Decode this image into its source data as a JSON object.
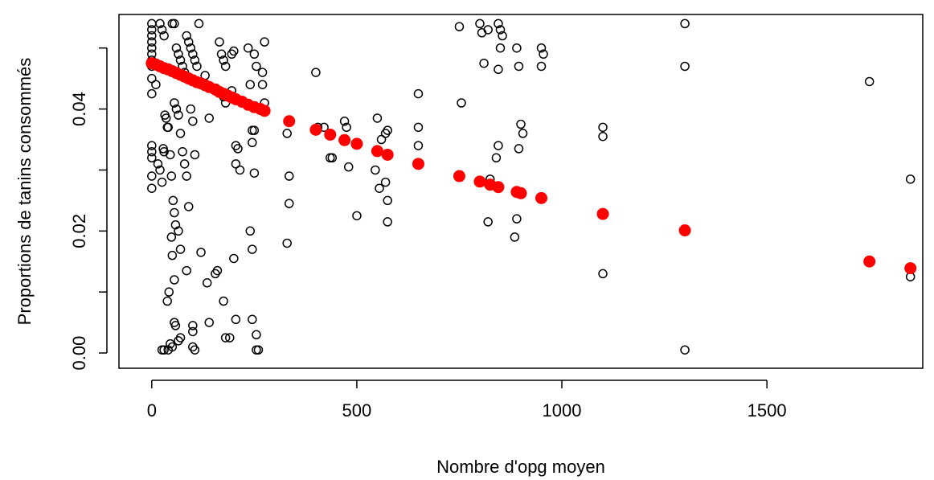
{
  "chart_data": {
    "type": "scatter",
    "title": "",
    "xlabel": "Nombre d'opg moyen",
    "ylabel": "Proportions de tanins consommés",
    "xlim": [
      -80,
      1880
    ],
    "ylim": [
      -0.0025,
      0.0555
    ],
    "x_ticks": [
      0,
      500,
      1000,
      1500
    ],
    "x_tick_labels": [
      "0",
      "500",
      "1000",
      "1500"
    ],
    "y_ticks": [
      0.0,
      0.01,
      0.02,
      0.03,
      0.04,
      0.05
    ],
    "y_tick_labels": [
      "0.00",
      "",
      "0.02",
      "",
      "0.04",
      ""
    ],
    "grid": false,
    "series": [
      {
        "marker": "open-circle",
        "color": "#000000",
        "points": [
          [
            0,
            0.054
          ],
          [
            0,
            0.053
          ],
          [
            0,
            0.052
          ],
          [
            0,
            0.051
          ],
          [
            0,
            0.05
          ],
          [
            0,
            0.049
          ],
          [
            0,
            0.048
          ],
          [
            0,
            0.047
          ],
          [
            0,
            0.045
          ],
          [
            0,
            0.0425
          ],
          [
            0,
            0.034
          ],
          [
            0,
            0.033
          ],
          [
            0,
            0.032
          ],
          [
            0,
            0.029
          ],
          [
            0,
            0.027
          ],
          [
            10,
            0.044
          ],
          [
            15,
            0.031
          ],
          [
            20,
            0.03
          ],
          [
            25,
            0.028
          ],
          [
            28,
            0.0335
          ],
          [
            30,
            0.033
          ],
          [
            32,
            0.039
          ],
          [
            35,
            0.0385
          ],
          [
            20,
            0.054
          ],
          [
            25,
            0.053
          ],
          [
            30,
            0.052
          ],
          [
            25,
            0.0005
          ],
          [
            30,
            0.0005
          ],
          [
            40,
            0.0005
          ],
          [
            45,
            0.0015
          ],
          [
            50,
            0.001
          ],
          [
            55,
            0.005
          ],
          [
            58,
            0.0045
          ],
          [
            65,
            0.002
          ],
          [
            70,
            0.0025
          ],
          [
            38,
            0.037
          ],
          [
            40,
            0.037
          ],
          [
            45,
            0.0325
          ],
          [
            48,
            0.029
          ],
          [
            52,
            0.025
          ],
          [
            55,
            0.023
          ],
          [
            58,
            0.021
          ],
          [
            65,
            0.02
          ],
          [
            70,
            0.017
          ],
          [
            48,
            0.019
          ],
          [
            50,
            0.016
          ],
          [
            55,
            0.012
          ],
          [
            42,
            0.01
          ],
          [
            38,
            0.0085
          ],
          [
            50,
            0.054
          ],
          [
            55,
            0.054
          ],
          [
            60,
            0.05
          ],
          [
            65,
            0.049
          ],
          [
            70,
            0.048
          ],
          [
            75,
            0.047
          ],
          [
            80,
            0.046
          ],
          [
            85,
            0.052
          ],
          [
            90,
            0.051
          ],
          [
            95,
            0.05
          ],
          [
            100,
            0.049
          ],
          [
            105,
            0.048
          ],
          [
            110,
            0.047
          ],
          [
            115,
            0.054
          ],
          [
            55,
            0.041
          ],
          [
            60,
            0.04
          ],
          [
            65,
            0.039
          ],
          [
            70,
            0.036
          ],
          [
            75,
            0.033
          ],
          [
            80,
            0.031
          ],
          [
            85,
            0.029
          ],
          [
            90,
            0.024
          ],
          [
            85,
            0.0135
          ],
          [
            95,
            0.04
          ],
          [
            100,
            0.038
          ],
          [
            105,
            0.0325
          ],
          [
            100,
            0.0035
          ],
          [
            100,
            0.001
          ],
          [
            100,
            0.0045
          ],
          [
            105,
            0.0005
          ],
          [
            120,
            0.0165
          ],
          [
            130,
            0.0455
          ],
          [
            135,
            0.0115
          ],
          [
            140,
            0.0385
          ],
          [
            140,
            0.005
          ],
          [
            155,
            0.013
          ],
          [
            160,
            0.0135
          ],
          [
            165,
            0.051
          ],
          [
            170,
            0.049
          ],
          [
            175,
            0.048
          ],
          [
            180,
            0.047
          ],
          [
            175,
            0.042
          ],
          [
            180,
            0.041
          ],
          [
            175,
            0.0085
          ],
          [
            180,
            0.0025
          ],
          [
            195,
            0.049
          ],
          [
            200,
            0.0495
          ],
          [
            195,
            0.043
          ],
          [
            200,
            0.0155
          ],
          [
            205,
            0.0055
          ],
          [
            190,
            0.0025
          ],
          [
            205,
            0.034
          ],
          [
            210,
            0.0335
          ],
          [
            205,
            0.031
          ],
          [
            215,
            0.03
          ],
          [
            235,
            0.05
          ],
          [
            240,
            0.044
          ],
          [
            245,
            0.0365
          ],
          [
            250,
            0.0365
          ],
          [
            245,
            0.0345
          ],
          [
            240,
            0.02
          ],
          [
            245,
            0.017
          ],
          [
            250,
            0.0295
          ],
          [
            245,
            0.0055
          ],
          [
            255,
            0.003
          ],
          [
            255,
            0.0005
          ],
          [
            260,
            0.0005
          ],
          [
            250,
            0.049
          ],
          [
            255,
            0.047
          ],
          [
            270,
            0.046
          ],
          [
            275,
            0.051
          ],
          [
            270,
            0.044
          ],
          [
            275,
            0.041
          ],
          [
            330,
            0.036
          ],
          [
            335,
            0.029
          ],
          [
            335,
            0.0245
          ],
          [
            330,
            0.018
          ],
          [
            400,
            0.046
          ],
          [
            405,
            0.037
          ],
          [
            420,
            0.037
          ],
          [
            435,
            0.032
          ],
          [
            440,
            0.032
          ],
          [
            470,
            0.038
          ],
          [
            475,
            0.037
          ],
          [
            480,
            0.0305
          ],
          [
            500,
            0.0225
          ],
          [
            550,
            0.0385
          ],
          [
            560,
            0.035
          ],
          [
            545,
            0.03
          ],
          [
            555,
            0.027
          ],
          [
            570,
            0.036
          ],
          [
            575,
            0.0365
          ],
          [
            570,
            0.028
          ],
          [
            575,
            0.025
          ],
          [
            575,
            0.0215
          ],
          [
            650,
            0.0425
          ],
          [
            650,
            0.037
          ],
          [
            650,
            0.034
          ],
          [
            750,
            0.0535
          ],
          [
            755,
            0.041
          ],
          [
            800,
            0.054
          ],
          [
            805,
            0.0525
          ],
          [
            810,
            0.0475
          ],
          [
            820,
            0.053
          ],
          [
            825,
            0.0285
          ],
          [
            820,
            0.0215
          ],
          [
            845,
            0.054
          ],
          [
            850,
            0.053
          ],
          [
            855,
            0.052
          ],
          [
            850,
            0.05
          ],
          [
            845,
            0.0465
          ],
          [
            845,
            0.034
          ],
          [
            840,
            0.032
          ],
          [
            890,
            0.05
          ],
          [
            895,
            0.047
          ],
          [
            900,
            0.0375
          ],
          [
            905,
            0.036
          ],
          [
            895,
            0.0335
          ],
          [
            890,
            0.022
          ],
          [
            885,
            0.019
          ],
          [
            950,
            0.05
          ],
          [
            955,
            0.049
          ],
          [
            950,
            0.047
          ],
          [
            1100,
            0.037
          ],
          [
            1100,
            0.0355
          ],
          [
            1100,
            0.013
          ],
          [
            1300,
            0.054
          ],
          [
            1300,
            0.047
          ],
          [
            1300,
            0.0005
          ],
          [
            1750,
            0.0445
          ],
          [
            1850,
            0.0285
          ],
          [
            1850,
            0.0125
          ]
        ]
      },
      {
        "marker": "filled-circle",
        "color": "#ff0000",
        "points": [
          [
            0,
            0.0475
          ],
          [
            10,
            0.0473
          ],
          [
            20,
            0.047
          ],
          [
            30,
            0.0467
          ],
          [
            40,
            0.0465
          ],
          [
            50,
            0.0462
          ],
          [
            60,
            0.0459
          ],
          [
            70,
            0.0456
          ],
          [
            80,
            0.0453
          ],
          [
            90,
            0.045
          ],
          [
            100,
            0.0447
          ],
          [
            110,
            0.0444
          ],
          [
            120,
            0.0442
          ],
          [
            130,
            0.0439
          ],
          [
            140,
            0.0436
          ],
          [
            155,
            0.0432
          ],
          [
            165,
            0.0428
          ],
          [
            175,
            0.0425
          ],
          [
            185,
            0.0422
          ],
          [
            195,
            0.0419
          ],
          [
            205,
            0.0416
          ],
          [
            220,
            0.0412
          ],
          [
            235,
            0.0407
          ],
          [
            250,
            0.0403
          ],
          [
            265,
            0.04
          ],
          [
            275,
            0.0397
          ],
          [
            335,
            0.038
          ],
          [
            400,
            0.0366
          ],
          [
            435,
            0.0358
          ],
          [
            470,
            0.0349
          ],
          [
            500,
            0.0343
          ],
          [
            550,
            0.0331
          ],
          [
            575,
            0.0325
          ],
          [
            650,
            0.031
          ],
          [
            750,
            0.029
          ],
          [
            800,
            0.0281
          ],
          [
            825,
            0.0276
          ],
          [
            845,
            0.0272
          ],
          [
            890,
            0.0264
          ],
          [
            900,
            0.0262
          ],
          [
            950,
            0.0254
          ],
          [
            1100,
            0.0228
          ],
          [
            1300,
            0.0201
          ],
          [
            1750,
            0.015
          ],
          [
            1850,
            0.0139
          ]
        ]
      }
    ]
  }
}
